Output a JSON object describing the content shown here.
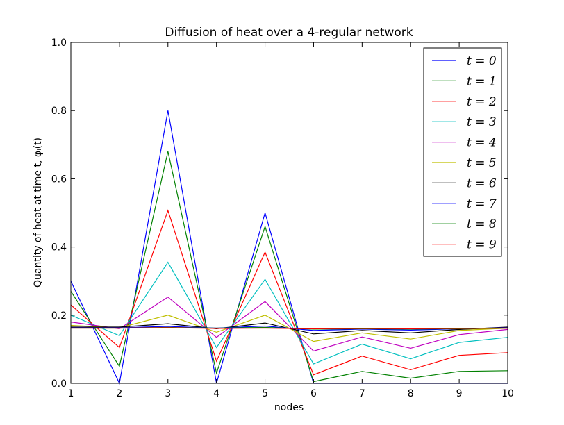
{
  "chart_data": {
    "type": "line",
    "title": "Diffusion of heat over a 4-regular network",
    "xlabel": "nodes",
    "ylabel": "Quantity of heat at time t, φᵢ(t)",
    "xlim": [
      1,
      10
    ],
    "ylim": [
      0,
      1
    ],
    "x": [
      1,
      2,
      3,
      4,
      5,
      6,
      7,
      8,
      9,
      10
    ],
    "x_ticks": [
      "1",
      "2",
      "3",
      "4",
      "5",
      "6",
      "7",
      "8",
      "9",
      "10"
    ],
    "y_ticks": [
      "0.0",
      "0.2",
      "0.4",
      "0.6",
      "0.8",
      "1.0"
    ],
    "grid": false,
    "legend_position": "top-right",
    "series": [
      {
        "name": "t = 0",
        "color": "#0000ff",
        "values": [
          0.3,
          0.0,
          0.8,
          0.0,
          0.5,
          0.0,
          0.0,
          0.0,
          0.0,
          0.0
        ]
      },
      {
        "name": "t = 1",
        "color": "#008000",
        "values": [
          0.27,
          0.05,
          0.68,
          0.03,
          0.46,
          0.005,
          0.035,
          0.015,
          0.035,
          0.037
        ]
      },
      {
        "name": "t = 2",
        "color": "#ff0000",
        "values": [
          0.23,
          0.105,
          0.507,
          0.065,
          0.385,
          0.025,
          0.08,
          0.04,
          0.082,
          0.09
        ]
      },
      {
        "name": "t = 3",
        "color": "#00bfbf",
        "values": [
          0.2,
          0.14,
          0.355,
          0.105,
          0.305,
          0.057,
          0.115,
          0.072,
          0.12,
          0.135
        ]
      },
      {
        "name": "t = 4",
        "color": "#bf00bf",
        "values": [
          0.18,
          0.16,
          0.253,
          0.135,
          0.24,
          0.095,
          0.136,
          0.103,
          0.143,
          0.158
        ]
      },
      {
        "name": "t = 5",
        "color": "#bfbf00",
        "values": [
          0.17,
          0.163,
          0.2,
          0.15,
          0.2,
          0.123,
          0.148,
          0.13,
          0.155,
          0.162
        ]
      },
      {
        "name": "t = 6",
        "color": "#000000",
        "values": [
          0.165,
          0.165,
          0.175,
          0.16,
          0.177,
          0.145,
          0.155,
          0.148,
          0.158,
          0.165
        ]
      },
      {
        "name": "t = 7",
        "color": "#0000ff",
        "values": [
          0.163,
          0.163,
          0.167,
          0.162,
          0.168,
          0.155,
          0.159,
          0.156,
          0.16,
          0.163
        ]
      },
      {
        "name": "t = 8",
        "color": "#008000",
        "values": [
          0.162,
          0.162,
          0.164,
          0.162,
          0.164,
          0.159,
          0.16,
          0.159,
          0.16,
          0.162
        ]
      },
      {
        "name": "t = 9",
        "color": "#ff0000",
        "values": [
          0.162,
          0.162,
          0.163,
          0.161,
          0.162,
          0.16,
          0.161,
          0.16,
          0.161,
          0.162
        ]
      }
    ]
  }
}
